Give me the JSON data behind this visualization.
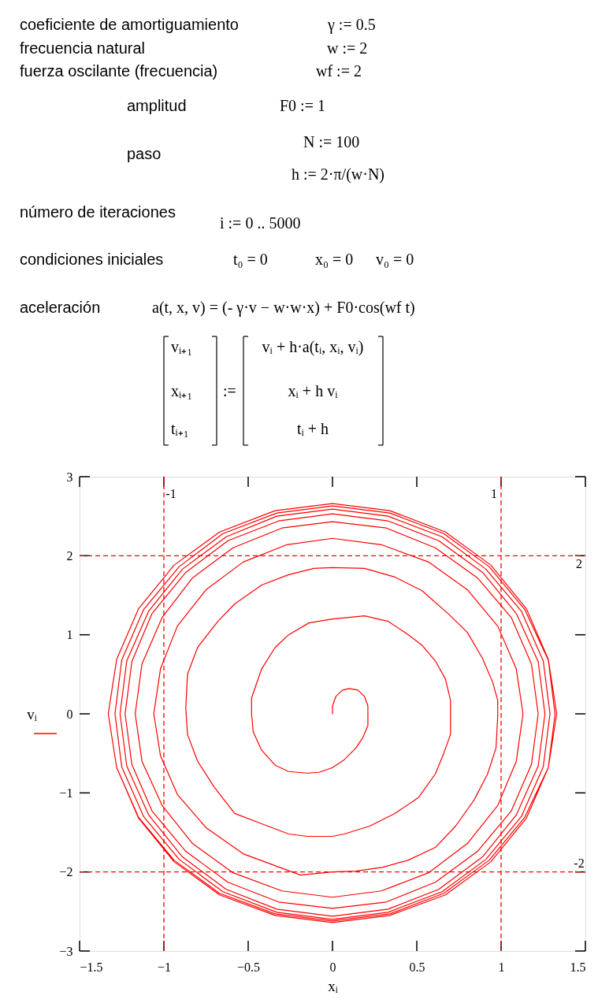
{
  "chart_data": {
    "type": "line",
    "xlabel": "xᵢ",
    "ylabel": "vᵢ",
    "annotations": [
      "coeficiente de amortiguamiento",
      "γ := 0.5",
      "frecuencia natural",
      "w := 2",
      "fuerza oscilante (frecuencia)",
      "wf := 2",
      "amplitud",
      "F0 := 1",
      "paso",
      "N := 100",
      "h := 2·π/(w·N)",
      "número de iteraciones",
      "i := 0 .. 5000",
      "condiciones iniciales",
      "t₀ = 0",
      "x₀ = 0",
      "v₀ = 0",
      "aceleración",
      "a(t, x, v) = (- γ·v − w·w·x) + F0·cos(wf t)",
      "vᵢ₊₁",
      "xᵢ₊₁",
      "tᵢ₊₁",
      ":=",
      "vᵢ + h·a(tᵢ, xᵢ, vᵢ)",
      "xᵢ + h vᵢ",
      "tᵢ + h"
    ],
    "xlim": [
      -1.5,
      1.5
    ],
    "ylim": [
      -3,
      3
    ],
    "xticks": [
      -1.5,
      -1,
      -0.5,
      0,
      0.5,
      1,
      1.5
    ],
    "yticks": [
      -3,
      -2,
      -1,
      0,
      1,
      2,
      3
    ],
    "ref_lines": [
      {
        "axis": "x",
        "value": -1,
        "label": "-1",
        "color": "#ff0000",
        "line_style": "dashed"
      },
      {
        "axis": "x",
        "value": 1,
        "label": "1",
        "color": "#ff0000",
        "line_style": "dashed"
      },
      {
        "axis": "y",
        "value": 2,
        "label": "2",
        "color": "#ff0000",
        "line_style": "dashed"
      },
      {
        "axis": "y",
        "value": -2,
        "label": "-2",
        "color": "#ff0000",
        "line_style": "dashed"
      }
    ],
    "x": [
      0,
      0,
      0.02,
      0.06,
      0.1,
      0.15,
      0.19,
      0.21,
      0.21,
      0.21,
      0.18,
      0.14,
      0.07,
      0,
      -0.08,
      -0.15,
      -0.26,
      -0.34,
      -0.42,
      -0.47,
      -0.48,
      -0.48,
      -0.42,
      -0.34,
      -0.26,
      -0.14,
      0,
      0.19,
      0.33,
      0.45,
      0.53,
      0.61,
      0.67,
      0.7,
      0.7,
      0.7,
      0.66,
      0.61,
      0.51,
      0.37,
      0.22,
      0.07,
      0,
      -0.15,
      -0.26,
      -0.42,
      -0.58,
      -0.7,
      -0.8,
      -0.86,
      -0.87,
      -0.86,
      -0.8,
      -0.68,
      -0.58,
      -0.42,
      -0.26,
      -0.11,
      0,
      0.19,
      0.37,
      0.53,
      0.69,
      0.8,
      0.89,
      0.95,
      0.98,
      0.98,
      0.97,
      0.92,
      0.84,
      0.73,
      0.61,
      0.45,
      0.3,
      0.14,
      0,
      -0.19,
      -0.53,
      -0.75,
      -0.92,
      -1.02,
      -1.06,
      -1.02,
      -0.92,
      -0.75,
      -0.53,
      -0.27,
      0,
      0.29,
      0.57,
      0.8,
      0.98,
      1.09,
      1.13,
      1.09,
      0.98,
      0.8,
      0.57,
      0.29,
      0,
      -0.3,
      -0.59,
      -0.83,
      -1.01,
      -1.13,
      -1.17,
      -1.13,
      -1.01,
      -0.83,
      -0.59,
      -0.3,
      0,
      0.32,
      0.61,
      0.86,
      1.06,
      1.18,
      1.22,
      1.18,
      1.06,
      0.86,
      0.61,
      0.32,
      0,
      -0.32,
      -0.62,
      -0.87,
      -1.07,
      -1.19,
      -1.23,
      -1.19,
      -1.07,
      -0.87,
      -0.62,
      -0.32,
      0,
      0.33,
      0.63,
      0.89,
      1.09,
      1.22,
      1.26,
      1.22,
      1.09,
      0.89,
      0.63,
      0.33,
      0,
      -0.33,
      -0.63,
      -0.89,
      -1.09,
      -1.22,
      -1.26,
      -1.22,
      -1.09,
      -0.89,
      -0.63,
      -0.33,
      0,
      0.33,
      0.65,
      0.91,
      1.12,
      1.25,
      1.29,
      1.25,
      1.12,
      0.91,
      0.65,
      0.33,
      0,
      -0.33,
      -0.65,
      -0.91,
      -1.12,
      -1.25,
      -1.29,
      -1.25,
      -1.12,
      -0.91,
      -0.65,
      -0.33,
      0,
      0.34,
      0.66,
      0.93,
      1.14,
      1.28,
      1.32,
      1.28,
      1.14,
      0.93,
      0.66,
      0.34,
      0,
      -0.34,
      -0.67,
      -0.94,
      -1.15,
      -1.28,
      -1.33,
      -1.28,
      -1.15,
      -0.94,
      -0.67,
      -0.34,
      0,
      0.34,
      0.67,
      0.94,
      1.15,
      1.28,
      1.33,
      1.28,
      1.15,
      0.94,
      0.67,
      0.34,
      0,
      -0.34,
      -0.67,
      -0.94,
      -1.15,
      -1.28,
      -1.33
    ],
    "series": [
      {
        "color": "#ff0000",
        "values": [
          0,
          0.1,
          0.22,
          0.3,
          0.32,
          0.3,
          0.22,
          0.1,
          -0.05,
          -0.15,
          -0.3,
          -0.43,
          -0.58,
          -0.68,
          -0.74,
          -0.75,
          -0.73,
          -0.65,
          -0.46,
          -0.23,
          0,
          0.2,
          0.57,
          0.84,
          1,
          1.15,
          1.2,
          1.24,
          1.17,
          1,
          0.87,
          0.67,
          0.44,
          0.17,
          -0.03,
          -0.26,
          -0.5,
          -0.76,
          -1.06,
          -1.26,
          -1.42,
          -1.52,
          -1.55,
          -1.55,
          -1.52,
          -1.39,
          -1.26,
          -0.93,
          -0.6,
          -0.26,
          0.07,
          0.5,
          0.84,
          1.17,
          1.39,
          1.63,
          1.76,
          1.84,
          1.85,
          1.84,
          1.73,
          1.56,
          1.26,
          1.03,
          0.7,
          0.4,
          0.17,
          -0.03,
          -0.43,
          -0.76,
          -1.09,
          -1.42,
          -1.69,
          -1.85,
          -1.94,
          -1.99,
          -2,
          -2.04,
          -1.77,
          -1.44,
          -1.02,
          -0.53,
          0,
          0.57,
          1.11,
          1.57,
          1.92,
          2.14,
          2.22,
          2.14,
          1.92,
          1.57,
          1.11,
          0.57,
          0,
          -0.6,
          -1.16,
          -1.64,
          -2.01,
          -2.24,
          -2.32,
          -2.24,
          -2.01,
          -1.64,
          -1.16,
          -0.6,
          0,
          0.63,
          1.22,
          1.72,
          2.1,
          2.35,
          2.43,
          2.35,
          2.1,
          1.72,
          1.22,
          0.63,
          0,
          -0.64,
          -1.23,
          -1.74,
          -2.13,
          -2.38,
          -2.46,
          -2.38,
          -2.13,
          -1.74,
          -1.23,
          -0.64,
          0,
          0.66,
          1.27,
          1.79,
          2.19,
          2.44,
          2.53,
          2.44,
          2.19,
          1.79,
          1.27,
          0.66,
          0,
          -0.66,
          -1.28,
          -1.81,
          -2.22,
          -2.47,
          -2.56,
          -2.47,
          -2.22,
          -1.81,
          -1.28,
          -0.66,
          0,
          0.67,
          1.3,
          1.83,
          2.24,
          2.5,
          2.59,
          2.5,
          2.24,
          1.83,
          1.3,
          0.67,
          0,
          -0.67,
          -1.3,
          -1.84,
          -2.25,
          -2.51,
          -2.6,
          -2.51,
          -2.25,
          -1.84,
          -1.3,
          -0.67,
          0,
          0.68,
          1.32,
          1.86,
          2.28,
          2.54,
          2.63,
          2.54,
          2.28,
          1.86,
          1.32,
          0.68,
          0,
          -0.68,
          -1.31,
          -1.85,
          -2.27,
          -2.53,
          -2.62,
          -2.53,
          -2.27,
          -1.85,
          -1.31,
          -0.68,
          0,
          0.69,
          1.33,
          1.88,
          2.3,
          2.57,
          2.66,
          2.57,
          2.3,
          1.88,
          1.33,
          0.69,
          0,
          -0.68,
          -1.32,
          -1.87,
          -2.29,
          -2.55,
          -2.64,
          -2.55,
          -2.29,
          -1.87,
          -1.32,
          -0.68,
          0
        ]
      }
    ]
  }
}
